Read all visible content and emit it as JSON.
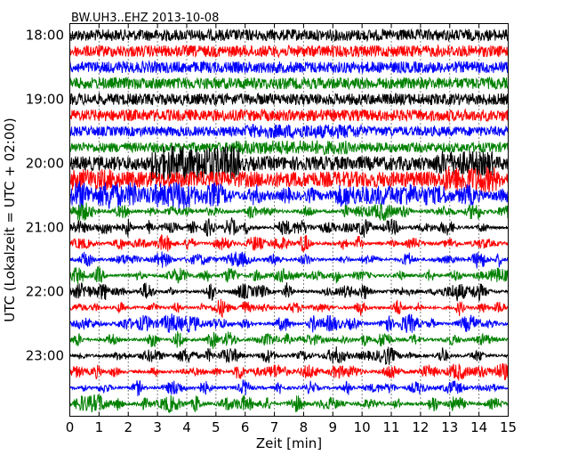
{
  "chart_data": {
    "type": "line",
    "title": "BW.UH3..EHZ 2013-10-08",
    "xlabel": "Zeit  [min]",
    "ylabel": "UTC (Lokalzeit = UTC + 02:00)",
    "xlim": [
      0,
      15
    ],
    "x_ticks": [
      0,
      1,
      2,
      3,
      4,
      5,
      6,
      7,
      8,
      9,
      10,
      11,
      12,
      13,
      14,
      15
    ],
    "x_tick_labels": [
      "0",
      "1",
      "2",
      "3",
      "4",
      "5",
      "6",
      "7",
      "8",
      "9",
      "10",
      "11",
      "12",
      "13",
      "14",
      "15"
    ],
    "y_tick_labels": [
      "18:00",
      "19:00",
      "20:00",
      "21:00",
      "22:00",
      "23:00"
    ],
    "y_ticks_minutes": [
      0,
      60,
      120,
      180,
      240,
      300
    ],
    "trace_interval_minutes": 15,
    "trace_start_minutes": [
      0,
      15,
      30,
      45,
      60,
      75,
      90,
      105,
      120,
      135,
      150,
      165,
      180,
      195,
      210,
      225,
      240,
      255,
      270,
      285,
      300,
      315,
      330,
      345
    ],
    "trace_colors": [
      "#000000",
      "#ff0000",
      "#0000ff",
      "#008000"
    ],
    "grid": true,
    "legend": "none"
  }
}
